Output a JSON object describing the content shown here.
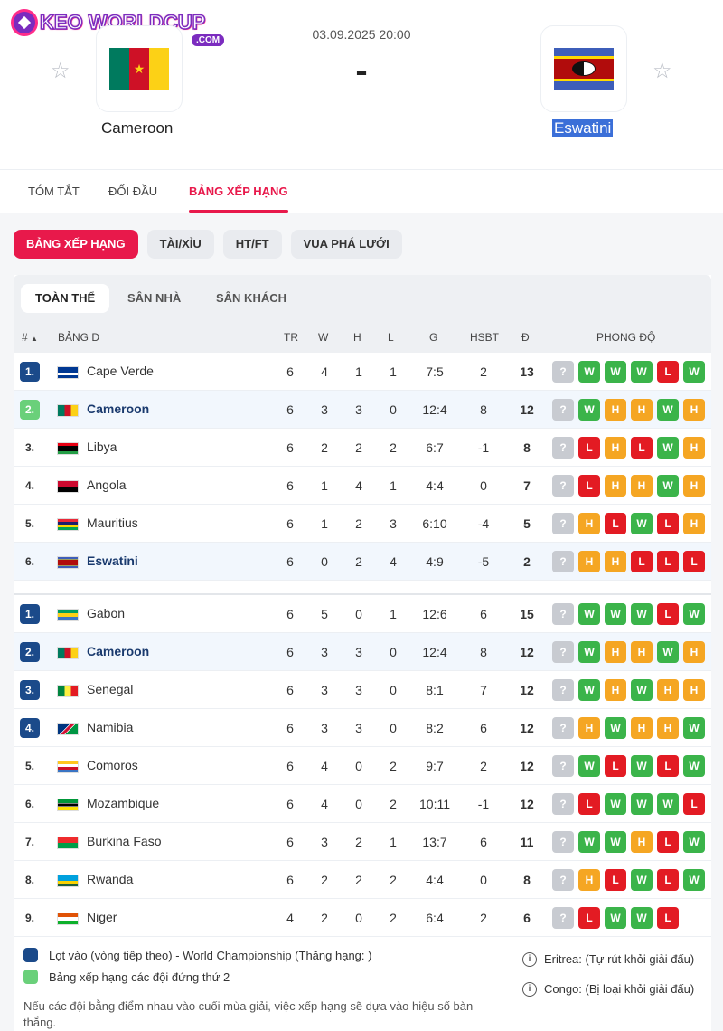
{
  "logo": {
    "main": "KEO WORLDCUP",
    "sub": ".COM"
  },
  "match": {
    "datetime": "03.09.2025 20:00",
    "score": "-",
    "home": {
      "name": "Cameroon",
      "flag": "cm"
    },
    "away": {
      "name": "Eswatini",
      "flag": "sz"
    }
  },
  "tabs": [
    {
      "label": "TÓM TẮT",
      "active": false
    },
    {
      "label": "ĐỐI ĐẦU",
      "active": false
    },
    {
      "label": "BẢNG XẾP HẠNG",
      "active": true
    }
  ],
  "pills": [
    {
      "label": "BẢNG XẾP HẠNG",
      "active": true
    },
    {
      "label": "TÀI/XỈU",
      "active": false
    },
    {
      "label": "HT/FT",
      "active": false
    },
    {
      "label": "VUA PHÁ LƯỚI",
      "active": false
    }
  ],
  "subtabs": [
    {
      "label": "TOÀN THỂ",
      "active": true
    },
    {
      "label": "SÂN NHÀ",
      "active": false
    },
    {
      "label": "SÂN KHÁCH",
      "active": false
    }
  ],
  "table_header": {
    "rank": "#",
    "group": "BẢNG D",
    "tr": "TR",
    "w": "W",
    "h": "H",
    "l": "L",
    "g": "G",
    "hsbt": "HSBT",
    "d": "Đ",
    "form": "PHONG ĐỘ"
  },
  "groups": [
    [
      {
        "rank": "1.",
        "rank_type": "q",
        "team": "Cape Verde",
        "flag": "cv",
        "tr": "6",
        "w": "4",
        "h": "1",
        "l": "1",
        "g": "7:5",
        "hsbt": "2",
        "d": "13",
        "hl": false,
        "form": [
          "?",
          "W",
          "W",
          "W",
          "L",
          "W"
        ]
      },
      {
        "rank": "2.",
        "rank_type": "s",
        "team": "Cameroon",
        "flag": "cm",
        "tr": "6",
        "w": "3",
        "h": "3",
        "l": "0",
        "g": "12:4",
        "hsbt": "8",
        "d": "12",
        "hl": true,
        "form": [
          "?",
          "W",
          "H",
          "H",
          "W",
          "H"
        ]
      },
      {
        "rank": "3.",
        "rank_type": "n",
        "team": "Libya",
        "flag": "ly",
        "tr": "6",
        "w": "2",
        "h": "2",
        "l": "2",
        "g": "6:7",
        "hsbt": "-1",
        "d": "8",
        "hl": false,
        "form": [
          "?",
          "L",
          "H",
          "L",
          "W",
          "H"
        ]
      },
      {
        "rank": "4.",
        "rank_type": "n",
        "team": "Angola",
        "flag": "ao",
        "tr": "6",
        "w": "1",
        "h": "4",
        "l": "1",
        "g": "4:4",
        "hsbt": "0",
        "d": "7",
        "hl": false,
        "form": [
          "?",
          "L",
          "H",
          "H",
          "W",
          "H"
        ]
      },
      {
        "rank": "5.",
        "rank_type": "n",
        "team": "Mauritius",
        "flag": "mu",
        "tr": "6",
        "w": "1",
        "h": "2",
        "l": "3",
        "g": "6:10",
        "hsbt": "-4",
        "d": "5",
        "hl": false,
        "form": [
          "?",
          "H",
          "L",
          "W",
          "L",
          "H"
        ]
      },
      {
        "rank": "6.",
        "rank_type": "n",
        "team": "Eswatini",
        "flag": "sz",
        "tr": "6",
        "w": "0",
        "h": "2",
        "l": "4",
        "g": "4:9",
        "hsbt": "-5",
        "d": "2",
        "hl": true,
        "form": [
          "?",
          "H",
          "H",
          "L",
          "L",
          "L"
        ]
      }
    ],
    [
      {
        "rank": "1.",
        "rank_type": "q",
        "team": "Gabon",
        "flag": "ga",
        "tr": "6",
        "w": "5",
        "h": "0",
        "l": "1",
        "g": "12:6",
        "hsbt": "6",
        "d": "15",
        "hl": false,
        "form": [
          "?",
          "W",
          "W",
          "W",
          "L",
          "W"
        ]
      },
      {
        "rank": "2.",
        "rank_type": "q",
        "team": "Cameroon",
        "flag": "cm",
        "tr": "6",
        "w": "3",
        "h": "3",
        "l": "0",
        "g": "12:4",
        "hsbt": "8",
        "d": "12",
        "hl": true,
        "form": [
          "?",
          "W",
          "H",
          "H",
          "W",
          "H"
        ]
      },
      {
        "rank": "3.",
        "rank_type": "q",
        "team": "Senegal",
        "flag": "sn",
        "tr": "6",
        "w": "3",
        "h": "3",
        "l": "0",
        "g": "8:1",
        "hsbt": "7",
        "d": "12",
        "hl": false,
        "form": [
          "?",
          "W",
          "H",
          "W",
          "H",
          "H"
        ]
      },
      {
        "rank": "4.",
        "rank_type": "q",
        "team": "Namibia",
        "flag": "na",
        "tr": "6",
        "w": "3",
        "h": "3",
        "l": "0",
        "g": "8:2",
        "hsbt": "6",
        "d": "12",
        "hl": false,
        "form": [
          "?",
          "H",
          "W",
          "H",
          "H",
          "W"
        ]
      },
      {
        "rank": "5.",
        "rank_type": "n",
        "team": "Comoros",
        "flag": "km",
        "tr": "6",
        "w": "4",
        "h": "0",
        "l": "2",
        "g": "9:7",
        "hsbt": "2",
        "d": "12",
        "hl": false,
        "form": [
          "?",
          "W",
          "L",
          "W",
          "L",
          "W"
        ]
      },
      {
        "rank": "6.",
        "rank_type": "n",
        "team": "Mozambique",
        "flag": "mz",
        "tr": "6",
        "w": "4",
        "h": "0",
        "l": "2",
        "g": "10:11",
        "hsbt": "-1",
        "d": "12",
        "hl": false,
        "form": [
          "?",
          "L",
          "W",
          "W",
          "W",
          "L"
        ]
      },
      {
        "rank": "7.",
        "rank_type": "n",
        "team": "Burkina Faso",
        "flag": "bf",
        "tr": "6",
        "w": "3",
        "h": "2",
        "l": "1",
        "g": "13:7",
        "hsbt": "6",
        "d": "11",
        "hl": false,
        "form": [
          "?",
          "W",
          "W",
          "H",
          "L",
          "W"
        ]
      },
      {
        "rank": "8.",
        "rank_type": "n",
        "team": "Rwanda",
        "flag": "rw",
        "tr": "6",
        "w": "2",
        "h": "2",
        "l": "2",
        "g": "4:4",
        "hsbt": "0",
        "d": "8",
        "hl": false,
        "form": [
          "?",
          "H",
          "L",
          "W",
          "L",
          "W"
        ]
      },
      {
        "rank": "9.",
        "rank_type": "n",
        "team": "Niger",
        "flag": "ne",
        "tr": "4",
        "w": "2",
        "h": "0",
        "l": "2",
        "g": "6:4",
        "hsbt": "2",
        "d": "6",
        "hl": false,
        "form": [
          "?",
          "L",
          "W",
          "W",
          "L"
        ]
      }
    ]
  ],
  "legend": [
    {
      "color": "#1b4a8a",
      "label": "Lọt vào (vòng tiếp theo) - World Championship (Thăng hạng: )"
    },
    {
      "color": "#6ad07a",
      "label": "Bảng xếp hạng các đội đứng thứ 2"
    }
  ],
  "notes": [
    "Eritrea: (Tự rút khỏi giải đấu)",
    "Congo: (Bị loại khỏi giải đấu)"
  ],
  "footnote": "Nếu các đội bằng điểm nhau vào cuối mùa giải, việc xếp hạng sẽ dựa vào hiệu số bàn thắng."
}
